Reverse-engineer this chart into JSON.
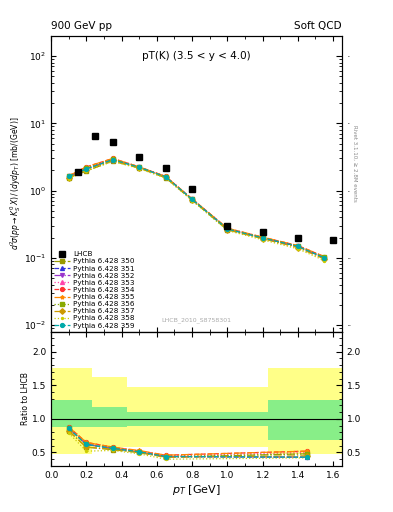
{
  "title_left": "900 GeV pp",
  "title_right": "Soft QCD",
  "annotation": "pT(K) (3.5 < y < 4.0)",
  "watermark": "LHCB_2010_S8758301",
  "right_label": "Rivet 3.1.10, ≥ 2.8M events",
  "ylabel_ratio": "Ratio to LHCB",
  "xlabel": "p_{T} [GeV]",
  "lhcb_data": {
    "x": [
      0.15,
      0.25,
      0.35,
      0.5,
      0.65,
      0.8,
      1.0,
      1.2,
      1.4,
      1.6
    ],
    "y": [
      1.9,
      6.5,
      5.2,
      3.2,
      2.2,
      1.05,
      0.3,
      0.24,
      0.2,
      0.185
    ]
  },
  "pythia_x": [
    0.1,
    0.2,
    0.35,
    0.5,
    0.65,
    0.8,
    1.0,
    1.2,
    1.4,
    1.55
  ],
  "pythia_series": [
    {
      "label": "Pythia 6.428 350",
      "color": "#999900",
      "marker": "s",
      "linestyle": "-.",
      "y": [
        1.55,
        1.95,
        2.75,
        2.15,
        1.55,
        0.72,
        0.26,
        0.195,
        0.145,
        0.098
      ]
    },
    {
      "label": "Pythia 6.428 351",
      "color": "#3333dd",
      "marker": "^",
      "linestyle": "--",
      "y": [
        1.62,
        2.1,
        2.88,
        2.22,
        1.6,
        0.74,
        0.268,
        0.198,
        0.148,
        0.1
      ]
    },
    {
      "label": "Pythia 6.428 352",
      "color": "#9933cc",
      "marker": "v",
      "linestyle": "-.",
      "y": [
        1.62,
        2.1,
        2.88,
        2.22,
        1.6,
        0.74,
        0.268,
        0.198,
        0.148,
        0.1
      ]
    },
    {
      "label": "Pythia 6.428 353",
      "color": "#ff44aa",
      "marker": "^",
      "linestyle": ":",
      "y": [
        1.65,
        2.2,
        2.95,
        2.25,
        1.62,
        0.75,
        0.272,
        0.2,
        0.15,
        0.102
      ]
    },
    {
      "label": "Pythia 6.428 354",
      "color": "#ff3333",
      "marker": "o",
      "linestyle": "--",
      "y": [
        1.65,
        2.25,
        3.0,
        2.25,
        1.62,
        0.75,
        0.275,
        0.202,
        0.152,
        0.104
      ]
    },
    {
      "label": "Pythia 6.428 355",
      "color": "#ff8800",
      "marker": "*",
      "linestyle": "-.",
      "y": [
        1.65,
        2.25,
        3.0,
        2.25,
        1.62,
        0.75,
        0.275,
        0.203,
        0.152,
        0.104
      ]
    },
    {
      "label": "Pythia 6.428 356",
      "color": "#88aa00",
      "marker": "s",
      "linestyle": ":",
      "y": [
        1.62,
        2.15,
        2.92,
        2.22,
        1.6,
        0.74,
        0.27,
        0.199,
        0.149,
        0.101
      ]
    },
    {
      "label": "Pythia 6.428 357",
      "color": "#cc9900",
      "marker": "D",
      "linestyle": "-.",
      "y": [
        1.55,
        2.05,
        2.8,
        2.18,
        1.57,
        0.73,
        0.262,
        0.192,
        0.142,
        0.096
      ]
    },
    {
      "label": "Pythia 6.428 358",
      "color": "#cccc00",
      "marker": ".",
      "linestyle": ":",
      "y": [
        1.5,
        1.95,
        2.72,
        2.12,
        1.53,
        0.71,
        0.255,
        0.185,
        0.136,
        0.091
      ]
    },
    {
      "label": "Pythia 6.428 359",
      "color": "#00aaaa",
      "marker": "o",
      "linestyle": "--",
      "y": [
        1.62,
        2.1,
        2.88,
        2.22,
        1.6,
        0.74,
        0.268,
        0.198,
        0.148,
        0.1
      ]
    }
  ],
  "ratio_pythia_x": [
    0.1,
    0.2,
    0.35,
    0.5,
    0.65,
    1.45
  ],
  "ratio_pythia_series": [
    {
      "color": "#999900",
      "marker": "s",
      "linestyle": "-.",
      "y": [
        0.82,
        0.58,
        0.54,
        0.5,
        0.43,
        0.48
      ]
    },
    {
      "color": "#3333dd",
      "marker": "^",
      "linestyle": "--",
      "y": [
        0.86,
        0.62,
        0.56,
        0.51,
        0.44,
        0.43
      ]
    },
    {
      "color": "#9933cc",
      "marker": "v",
      "linestyle": "-.",
      "y": [
        0.86,
        0.62,
        0.56,
        0.51,
        0.44,
        0.43
      ]
    },
    {
      "color": "#ff44aa",
      "marker": "^",
      "linestyle": ":",
      "y": [
        0.88,
        0.64,
        0.57,
        0.52,
        0.45,
        0.5
      ]
    },
    {
      "color": "#ff3333",
      "marker": "o",
      "linestyle": "--",
      "y": [
        0.88,
        0.65,
        0.58,
        0.52,
        0.46,
        0.52
      ]
    },
    {
      "color": "#ff8800",
      "marker": "*",
      "linestyle": "-.",
      "y": [
        0.88,
        0.65,
        0.58,
        0.53,
        0.46,
        0.52
      ]
    },
    {
      "color": "#88aa00",
      "marker": "s",
      "linestyle": ":",
      "y": [
        0.86,
        0.62,
        0.57,
        0.51,
        0.44,
        0.48
      ]
    },
    {
      "color": "#cc9900",
      "marker": "D",
      "linestyle": "-.",
      "y": [
        0.82,
        0.58,
        0.55,
        0.5,
        0.43,
        0.45
      ]
    },
    {
      "color": "#cccc00",
      "marker": ".",
      "linestyle": ":",
      "y": [
        0.79,
        0.52,
        0.53,
        0.48,
        0.4,
        0.42
      ]
    },
    {
      "color": "#00aaaa",
      "marker": "o",
      "linestyle": "--",
      "y": [
        0.86,
        0.62,
        0.56,
        0.51,
        0.44,
        0.43
      ]
    }
  ],
  "ylim_main": [
    0.008,
    200
  ],
  "ylim_ratio": [
    0.3,
    2.3
  ],
  "xlim": [
    0.0,
    1.65
  ],
  "ratio_yticks": [
    0.5,
    1.0,
    1.5,
    2.0
  ],
  "green_band": {
    "edges": [
      0.0,
      0.23,
      0.43,
      1.23,
      1.65
    ],
    "low": [
      0.88,
      0.88,
      0.9,
      0.68,
      0.68
    ],
    "high": [
      1.28,
      1.18,
      1.1,
      1.28,
      1.28
    ]
  },
  "yellow_band": {
    "edges": [
      0.0,
      0.23,
      0.43,
      1.23,
      1.65
    ],
    "low": [
      0.48,
      0.58,
      0.58,
      0.48,
      0.48
    ],
    "high": [
      1.75,
      1.63,
      1.48,
      1.75,
      1.75
    ]
  }
}
